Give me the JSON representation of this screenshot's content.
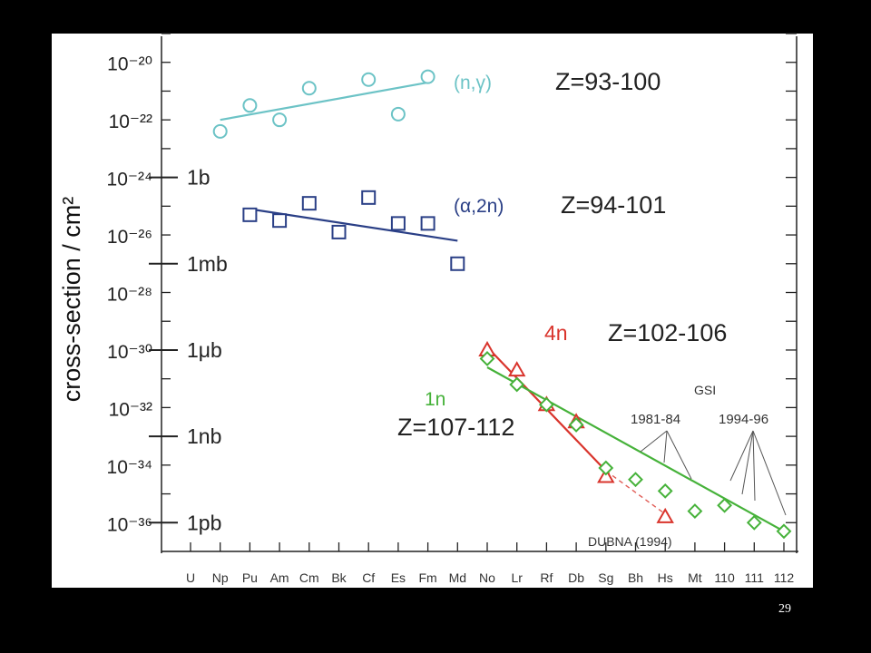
{
  "slide": {
    "page_number": "29"
  },
  "chart_data": {
    "type": "scatter",
    "ylabel": "cross-section / cm²",
    "y_scale": "log",
    "ylim_exponent": [
      -37,
      -19
    ],
    "y_tick_labels": [
      "10⁻²⁰",
      "10⁻²²",
      "10⁻²⁴",
      "10⁻²⁶",
      "10⁻²⁸",
      "10⁻³⁰",
      "10⁻³²",
      "10⁻³⁴",
      "10⁻³⁶"
    ],
    "y_tick_exponents": [
      -20,
      -22,
      -24,
      -26,
      -28,
      -30,
      -32,
      -34,
      -36
    ],
    "unit_labels": [
      {
        "text": "1b",
        "exponent": -24
      },
      {
        "text": "1mb",
        "exponent": -27
      },
      {
        "text": "1μb",
        "exponent": -30
      },
      {
        "text": "1nb",
        "exponent": -33
      },
      {
        "text": "1pb",
        "exponent": -36
      }
    ],
    "categories": [
      "U",
      "Np",
      "Pu",
      "Am",
      "Cm",
      "Bk",
      "Cf",
      "Es",
      "Fm",
      "Md",
      "No",
      "Lr",
      "Rf",
      "Db",
      "Sg",
      "Bh",
      "Hs",
      "Mt",
      "110",
      "111",
      "112"
    ],
    "series": [
      {
        "name": "(n,γ)",
        "range_label": "Z=93-100",
        "color": "#6cc3c6",
        "marker": "circle",
        "points": [
          [
            "Np",
            -22.4
          ],
          [
            "Pu",
            -21.5
          ],
          [
            "Am",
            -22.0
          ],
          [
            "Cm",
            -20.9
          ],
          [
            "Cf",
            -20.6
          ],
          [
            "Es",
            -21.8
          ],
          [
            "Fm",
            -20.5
          ]
        ],
        "trend": [
          [
            "Np",
            -22.0
          ],
          [
            "Fm",
            -20.7
          ]
        ]
      },
      {
        "name": "(α,2n)",
        "range_label": "Z=94-101",
        "color": "#2a3f86",
        "marker": "square",
        "points": [
          [
            "Pu",
            -25.3
          ],
          [
            "Am",
            -25.5
          ],
          [
            "Cm",
            -24.9
          ],
          [
            "Bk",
            -25.9
          ],
          [
            "Cf",
            -24.7
          ],
          [
            "Es",
            -25.6
          ],
          [
            "Fm",
            -25.6
          ],
          [
            "Md",
            -27.0
          ]
        ],
        "trend": [
          [
            "Pu",
            -25.1
          ],
          [
            "Md",
            -26.2
          ]
        ]
      },
      {
        "name": "4n",
        "range_label": "Z=102-106",
        "color": "#d9342c",
        "marker": "triangle",
        "points": [
          [
            "No",
            -30.0
          ],
          [
            "Lr",
            -30.7
          ],
          [
            "Rf",
            -31.9
          ],
          [
            "Db",
            -32.5
          ],
          [
            "Sg",
            -34.4
          ],
          [
            "Hs",
            -35.8
          ]
        ],
        "trend": [
          [
            "No",
            -29.9
          ],
          [
            "Sg",
            -34.2
          ]
        ],
        "extrapolation": [
          [
            "Sg",
            -34.2
          ],
          [
            "Hs",
            -35.7
          ]
        ]
      },
      {
        "name": "1n",
        "range_label": "Z=107-112",
        "color": "#46b23a",
        "marker": "diamond",
        "points": [
          [
            "No",
            -30.3
          ],
          [
            "Lr",
            -31.2
          ],
          [
            "Rf",
            -31.9
          ],
          [
            "Db",
            -32.6
          ],
          [
            "Sg",
            -34.1
          ],
          [
            "Bh",
            -34.5
          ],
          [
            "Hs",
            -34.9
          ],
          [
            "Mt",
            -35.6
          ],
          [
            "110",
            -35.4
          ],
          [
            "111",
            -36.0
          ],
          [
            "112",
            -36.3
          ]
        ],
        "trend": [
          [
            "No",
            -30.6
          ],
          [
            "112",
            -36.3
          ]
        ]
      }
    ],
    "annotations": [
      {
        "text": "GSI"
      },
      {
        "text": "1981-84"
      },
      {
        "text": "1994-96"
      },
      {
        "text": "DUBNA (1994)"
      }
    ]
  }
}
